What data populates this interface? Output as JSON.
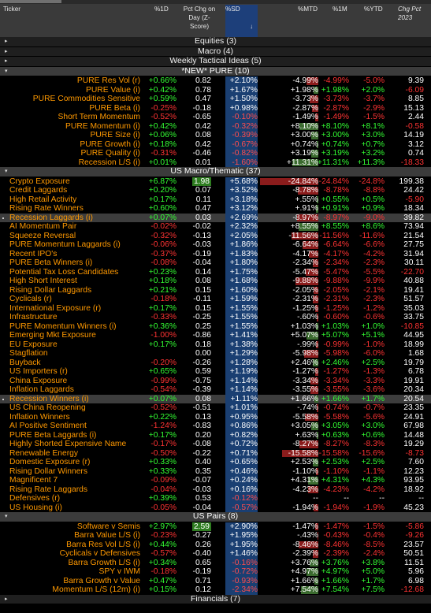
{
  "columns": {
    "ticker": "Ticker",
    "d1": "%1D",
    "pct": "Pct Chg on Day (Z-Score)",
    "sd": "%SD",
    "sd_sort": "↓",
    "mtd": "%MTD",
    "m1": "%1M",
    "ytd": "%YTD",
    "chg": "Chg Pct 2023"
  },
  "groups_top": [
    {
      "label": "Equities (3)",
      "arrow": "▸"
    },
    {
      "label": "Macro (4)",
      "arrow": "▸"
    },
    {
      "label": "Weekly Tactical Ideas (5)",
      "arrow": "▸"
    }
  ],
  "section_pure": {
    "label": "*NEW* PURE (10)",
    "arrow": "▾"
  },
  "pure_rows": [
    {
      "name": "PURE Res Vol (r)",
      "d1": "+0.66%",
      "pct": "0.82",
      "sd": "+2.10%",
      "mtd": "-4.99%",
      "m1": "-4.99%",
      "ytd": "-5.0%",
      "chg": "9.39"
    },
    {
      "name": "PURE Value (i)",
      "d1": "+0.42%",
      "pct": "0.78",
      "sd": "+1.67%",
      "mtd": "+1.98%",
      "m1": "+1.98%",
      "ytd": "+2.0%",
      "chg": "-6.09"
    },
    {
      "name": "PURE Commodities Sensitive",
      "d1": "+0.59%",
      "pct": "0.47",
      "sd": "+1.50%",
      "mtd": "-3.73%",
      "m1": "-3.73%",
      "ytd": "-3.7%",
      "chg": "8.85"
    },
    {
      "name": "PURE Beta (i)",
      "d1": "-0.25%",
      "pct": "-0.18",
      "sd": "+0.98%",
      "mtd": "-2.87%",
      "m1": "-2.87%",
      "ytd": "-2.9%",
      "chg": "15.13"
    },
    {
      "name": "Short Term Momentum",
      "d1": "-0.52%",
      "pct": "-0.65",
      "sd": "-0.10%",
      "mtd": "-1.49%",
      "m1": "-1.49%",
      "ytd": "-1.5%",
      "chg": "2.44"
    },
    {
      "name": "PURE Momentum (i)",
      "d1": "+0.42%",
      "pct": "0.42",
      "sd": "-0.32%",
      "mtd": "+8.10%",
      "m1": "+8.10%",
      "ytd": "+8.1%",
      "chg": "-0.58"
    },
    {
      "name": "PURE Size (i)",
      "d1": "+0.06%",
      "pct": "0.08",
      "sd": "-0.39%",
      "mtd": "+3.00%",
      "m1": "+3.00%",
      "ytd": "+3.0%",
      "chg": "14.19"
    },
    {
      "name": "PURE Growth (i)",
      "d1": "+0.18%",
      "pct": "0.42",
      "sd": "-0.67%",
      "mtd": "+0.74%",
      "m1": "+0.74%",
      "ytd": "+0.7%",
      "chg": "3.12"
    },
    {
      "name": "PURE Quality (i)",
      "d1": "-0.31%",
      "pct": "-0.46",
      "sd": "-0.82%",
      "mtd": "+3.19%",
      "m1": "+3.19%",
      "ytd": "+3.2%",
      "chg": "0.74"
    },
    {
      "name": "Recession L/S (i)",
      "d1": "+0.01%",
      "pct": "0.01",
      "sd": "-1.60%",
      "mtd": "+11.31%",
      "m1": "+11.31%",
      "ytd": "+11.3%",
      "chg": "-18.33"
    }
  ],
  "section_macro": {
    "label": "US Macro/Thematic (37)",
    "arrow": "▾"
  },
  "macro_rows": [
    {
      "name": "Crypto Exposure",
      "d1": "+6.87%",
      "pct": "1.98",
      "sd": "+5.68%",
      "mtd": "-24.84%",
      "m1": "-24.84%",
      "ytd": "-24.8%",
      "chg": "199.38",
      "hl": true
    },
    {
      "name": "Credit Laggards",
      "d1": "+0.20%",
      "pct": "0.07",
      "sd": "+3.52%",
      "mtd": "-8.78%",
      "m1": "-8.78%",
      "ytd": "-8.8%",
      "chg": "24.42"
    },
    {
      "name": "High Retail Activity",
      "d1": "+0.17%",
      "pct": "0.11",
      "sd": "+3.18%",
      "mtd": "+.55%",
      "m1": "+0.55%",
      "ytd": "+0.5%",
      "chg": "-5.90"
    },
    {
      "name": "Rising Rate Winners",
      "d1": "+0.60%",
      "pct": "0.47",
      "sd": "+3.12%",
      "mtd": "+.91%",
      "m1": "+0.91%",
      "ytd": "+0.9%",
      "chg": "18.34"
    },
    {
      "name": "Recession Laggards (i)",
      "d1": "+0.07%",
      "pct": "0.03",
      "sd": "+2.69%",
      "mtd": "-8.97%",
      "m1": "-8.97%",
      "ytd": "-9.0%",
      "chg": "39.82",
      "sel": true
    },
    {
      "name": "AI Momentum Pair",
      "d1": "-0.02%",
      "pct": "-0.02",
      "sd": "+2.32%",
      "mtd": "+8.55%",
      "m1": "+8.55%",
      "ytd": "+8.6%",
      "chg": "73.94"
    },
    {
      "name": "Squeeze Reversal",
      "d1": "-0.32%",
      "pct": "-0.13",
      "sd": "+2.05%",
      "mtd": "-11.56%",
      "m1": "-11.56%",
      "ytd": "-11.6%",
      "chg": "21.54"
    },
    {
      "name": "PURE Momentum Laggards (i)",
      "d1": "-0.06%",
      "pct": "-0.03",
      "sd": "+1.86%",
      "mtd": "-6.64%",
      "m1": "-6.64%",
      "ytd": "-6.6%",
      "chg": "27.75"
    },
    {
      "name": "Recent IPO's",
      "d1": "-0.37%",
      "pct": "-0.19",
      "sd": "+1.83%",
      "mtd": "-4.17%",
      "m1": "-4.17%",
      "ytd": "-4.2%",
      "chg": "31.94"
    },
    {
      "name": "PURE Beta Winners (i)",
      "d1": "-0.08%",
      "pct": "-0.04",
      "sd": "+1.80%",
      "mtd": "-2.34%",
      "m1": "-2.34%",
      "ytd": "-2.3%",
      "chg": "30.11"
    },
    {
      "name": "Potential Tax Loss Candidates",
      "d1": "+0.23%",
      "pct": "0.14",
      "sd": "+1.75%",
      "mtd": "-5.47%",
      "m1": "-5.47%",
      "ytd": "-5.5%",
      "chg": "-22.70"
    },
    {
      "name": "High Short Interest",
      "d1": "+0.18%",
      "pct": "0.08",
      "sd": "+1.68%",
      "mtd": "-9.88%",
      "m1": "-9.88%",
      "ytd": "-9.9%",
      "chg": "40.88"
    },
    {
      "name": "Rising Dollar Laggards",
      "d1": "+0.21%",
      "pct": "0.15",
      "sd": "+1.60%",
      "mtd": "-2.05%",
      "m1": "-2.05%",
      "ytd": "-2.1%",
      "chg": "19.41"
    },
    {
      "name": "Cyclicals (r)",
      "d1": "-0.18%",
      "pct": "-0.11",
      "sd": "+1.59%",
      "mtd": "-2.31%",
      "m1": "-2.31%",
      "ytd": "-2.3%",
      "chg": "51.57"
    },
    {
      "name": "International Exposure (r)",
      "d1": "+0.17%",
      "pct": "0.15",
      "sd": "+1.55%",
      "mtd": "-1.25%",
      "m1": "-1.25%",
      "ytd": "-1.2%",
      "chg": "35.03"
    },
    {
      "name": "Infrastructure",
      "d1": "-0.33%",
      "pct": "-0.25",
      "sd": "+1.55%",
      "mtd": "-.60%",
      "m1": "-0.60%",
      "ytd": "-0.6%",
      "chg": "33.75"
    },
    {
      "name": "PURE Momentum Winners (i)",
      "d1": "+0.36%",
      "pct": "0.25",
      "sd": "+1.55%",
      "mtd": "+1.03%",
      "m1": "+1.03%",
      "ytd": "+1.0%",
      "chg": "-10.85"
    },
    {
      "name": "Emerging Mkt Exposure",
      "d1": "-1.00%",
      "pct": "-0.86",
      "sd": "+1.41%",
      "mtd": "+5.07%",
      "m1": "+5.07%",
      "ytd": "+5.1%",
      "chg": "44.95"
    },
    {
      "name": "EU Exposure",
      "d1": "+0.17%",
      "pct": "0.18",
      "sd": "+1.38%",
      "mtd": "-.99%",
      "m1": "-0.99%",
      "ytd": "-1.0%",
      "chg": "18.99"
    },
    {
      "name": "Stagflation",
      "d1": "",
      "pct": "0.00",
      "sd": "+1.29%",
      "mtd": "-5.98%",
      "m1": "-5.98%",
      "ytd": "-6.0%",
      "chg": "1.68"
    },
    {
      "name": "Buyback",
      "d1": "-0.20%",
      "pct": "-0.26",
      "sd": "+1.28%",
      "mtd": "+2.46%",
      "m1": "+2.46%",
      "ytd": "+2.5%",
      "chg": "19.79"
    },
    {
      "name": "US Importers (r)",
      "d1": "+0.65%",
      "pct": "0.59",
      "sd": "+1.19%",
      "mtd": "-1.27%",
      "m1": "-1.27%",
      "ytd": "-1.3%",
      "chg": "6.78"
    },
    {
      "name": "China Exposure",
      "d1": "-0.99%",
      "pct": "-0.75",
      "sd": "+1.14%",
      "mtd": "-3.34%",
      "m1": "-3.34%",
      "ytd": "-3.3%",
      "chg": "19.91"
    },
    {
      "name": "Inflation Laggards",
      "d1": "-0.54%",
      "pct": "-0.39",
      "sd": "+1.14%",
      "mtd": "-3.55%",
      "m1": "-3.55%",
      "ytd": "-3.6%",
      "chg": "20.34"
    },
    {
      "name": "Recession Winners (i)",
      "d1": "+0.07%",
      "pct": "0.08",
      "sd": "+1.11%",
      "mtd": "+1.66%",
      "m1": "+1.66%",
      "ytd": "+1.7%",
      "chg": "20.54",
      "sel": true
    },
    {
      "name": "US China Reopening",
      "d1": "-0.52%",
      "pct": "-0.51",
      "sd": "+1.01%",
      "mtd": "-.74%",
      "m1": "-0.74%",
      "ytd": "-0.7%",
      "chg": "23.35"
    },
    {
      "name": "Inflation Winners",
      "d1": "+0.22%",
      "pct": "0.13",
      "sd": "+0.95%",
      "mtd": "-5.58%",
      "m1": "-5.58%",
      "ytd": "-5.6%",
      "chg": "24.91"
    },
    {
      "name": "AI Positive Sentiment",
      "d1": "-1.24%",
      "pct": "-0.83",
      "sd": "+0.86%",
      "mtd": "+3.05%",
      "m1": "+3.05%",
      "ytd": "+3.0%",
      "chg": "67.98"
    },
    {
      "name": "PURE Beta Laggards (i)",
      "d1": "+0.17%",
      "pct": "0.20",
      "sd": "+0.82%",
      "mtd": "+.63%",
      "m1": "+0.63%",
      "ytd": "+0.6%",
      "chg": "14.48"
    },
    {
      "name": "Highly Shorted Expensive Name",
      "d1": "-0.17%",
      "pct": "-0.08",
      "sd": "+0.72%",
      "mtd": "-8.27%",
      "m1": "-8.27%",
      "ytd": "-8.3%",
      "chg": "19.29"
    },
    {
      "name": "Renewable Energy",
      "d1": "-0.50%",
      "pct": "-0.22",
      "sd": "+0.71%",
      "mtd": "-15.58%",
      "m1": "-15.58%",
      "ytd": "-15.6%",
      "chg": "-8.73"
    },
    {
      "name": "Domestic Exposure (r)",
      "d1": "+0.33%",
      "pct": "0.40",
      "sd": "+0.65%",
      "mtd": "+2.53%",
      "m1": "+2.53%",
      "ytd": "+2.5%",
      "chg": "7.60"
    },
    {
      "name": "Rising Dollar Winners",
      "d1": "+0.33%",
      "pct": "0.35",
      "sd": "+0.46%",
      "mtd": "-1.10%",
      "m1": "-1.10%",
      "ytd": "-1.1%",
      "chg": "12.23"
    },
    {
      "name": "Magnificent 7",
      "d1": "-0.09%",
      "pct": "-0.07",
      "sd": "+0.24%",
      "mtd": "+4.31%",
      "m1": "+4.31%",
      "ytd": "+4.3%",
      "chg": "93.95"
    },
    {
      "name": "Rising Rate Laggards",
      "d1": "-0.04%",
      "pct": "-0.03",
      "sd": "+0.16%",
      "mtd": "-4.23%",
      "m1": "-4.23%",
      "ytd": "-4.2%",
      "chg": "18.92"
    },
    {
      "name": "Defensives (r)",
      "d1": "+0.39%",
      "pct": "0.53",
      "sd": "-0.12%",
      "mtd": "--",
      "m1": "--",
      "ytd": "--",
      "chg": "--"
    },
    {
      "name": "US Housing (i)",
      "d1": "-0.05%",
      "pct": "-0.04",
      "sd": "-0.57%",
      "mtd": "-1.94%",
      "m1": "-1.94%",
      "ytd": "-1.9%",
      "chg": "45.23"
    }
  ],
  "section_pairs": {
    "label": "US Pairs (8)",
    "arrow": "▾"
  },
  "pairs_rows": [
    {
      "name": "Software v Semis",
      "d1": "+2.97%",
      "pct": "2.59",
      "sd": "+2.90%",
      "mtd": "-1.47%",
      "m1": "-1.47%",
      "ytd": "-1.5%",
      "chg": "-5.86",
      "hl": true
    },
    {
      "name": "Barra Value L/S (i)",
      "d1": "-0.23%",
      "pct": "-0.27",
      "sd": "+1.95%",
      "mtd": "-.43%",
      "m1": "-0.43%",
      "ytd": "-0.4%",
      "chg": "-9.26"
    },
    {
      "name": "Barra Res Vol L/S (i)",
      "d1": "+0.44%",
      "pct": "0.26",
      "sd": "+1.95%",
      "mtd": "-8.46%",
      "m1": "-8.46%",
      "ytd": "-8.5%",
      "chg": "23.57"
    },
    {
      "name": "Cyclicals v Defensives",
      "d1": "-0.57%",
      "pct": "-0.40",
      "sd": "+1.46%",
      "mtd": "-2.39%",
      "m1": "-2.39%",
      "ytd": "-2.4%",
      "chg": "50.51"
    },
    {
      "name": "Barra Growth L/S (i)",
      "d1": "+0.34%",
      "pct": "0.65",
      "sd": "-0.16%",
      "mtd": "+3.76%",
      "m1": "+3.76%",
      "ytd": "+3.8%",
      "chg": "11.51"
    },
    {
      "name": "SPY v IWM",
      "d1": "-0.18%",
      "pct": "-0.19",
      "sd": "-0.72%",
      "mtd": "+4.97%",
      "m1": "+4.97%",
      "ytd": "+5.0%",
      "chg": "5.96"
    },
    {
      "name": "Barra Growth v Value",
      "d1": "+0.47%",
      "pct": "0.71",
      "sd": "-0.93%",
      "mtd": "+1.66%",
      "m1": "+1.66%",
      "ytd": "+1.7%",
      "chg": "6.98"
    },
    {
      "name": "Momentum L/S (12m) (i)",
      "d1": "+0.15%",
      "pct": "0.12",
      "sd": "-2.34%",
      "mtd": "+7.54%",
      "m1": "+7.54%",
      "ytd": "+7.5%",
      "chg": "-12.68"
    }
  ],
  "groups_bottom": [
    {
      "label": "Financials (7)",
      "arrow": "▸"
    }
  ]
}
